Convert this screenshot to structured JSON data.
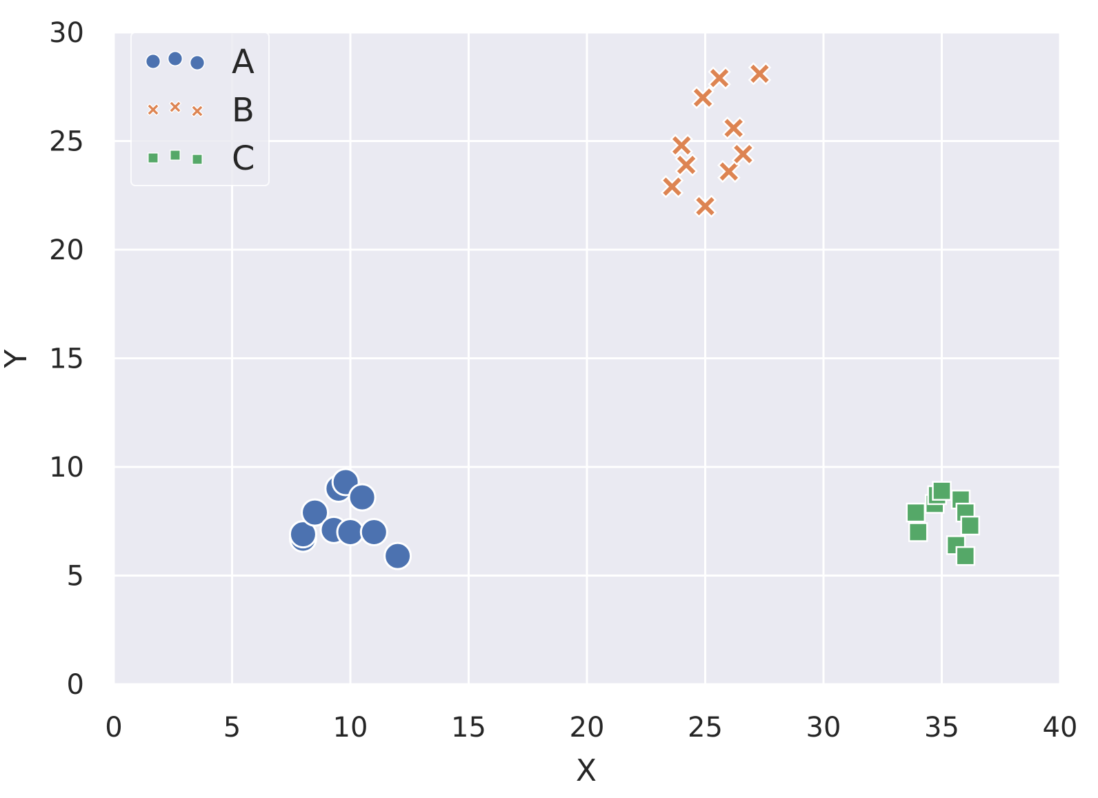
{
  "chart_data": {
    "type": "scatter",
    "title": "",
    "xlabel": "X",
    "ylabel": "Y",
    "xlim": [
      0,
      40
    ],
    "ylim": [
      0,
      30
    ],
    "xticks": [
      "0",
      "5",
      "10",
      "15",
      "20",
      "25",
      "30",
      "35",
      "40"
    ],
    "yticks": [
      "0",
      "5",
      "10",
      "15",
      "20",
      "25",
      "30"
    ],
    "grid": true,
    "legend_position": "top-left",
    "background_color": "#EAEAF2",
    "grid_color": "#FFFFFF",
    "series": [
      {
        "name": "A",
        "marker": "circle",
        "color": "#4C72B0",
        "points": [
          {
            "x": 8.0,
            "y": 6.7
          },
          {
            "x": 8.0,
            "y": 6.9
          },
          {
            "x": 8.5,
            "y": 7.9
          },
          {
            "x": 9.3,
            "y": 7.1
          },
          {
            "x": 9.5,
            "y": 9.0
          },
          {
            "x": 9.8,
            "y": 9.3
          },
          {
            "x": 10.0,
            "y": 7.0
          },
          {
            "x": 10.5,
            "y": 8.6
          },
          {
            "x": 11.0,
            "y": 7.0
          },
          {
            "x": 12.0,
            "y": 5.9
          }
        ]
      },
      {
        "name": "B",
        "marker": "x",
        "color": "#DD8452",
        "points": [
          {
            "x": 23.6,
            "y": 22.9
          },
          {
            "x": 24.0,
            "y": 24.8
          },
          {
            "x": 24.2,
            "y": 23.9
          },
          {
            "x": 24.9,
            "y": 27.0
          },
          {
            "x": 25.0,
            "y": 22.0
          },
          {
            "x": 25.6,
            "y": 27.9
          },
          {
            "x": 26.0,
            "y": 23.6
          },
          {
            "x": 26.2,
            "y": 25.6
          },
          {
            "x": 26.6,
            "y": 24.4
          },
          {
            "x": 27.3,
            "y": 28.1
          }
        ]
      },
      {
        "name": "C",
        "marker": "square",
        "color": "#55A868",
        "points": [
          {
            "x": 33.9,
            "y": 7.9
          },
          {
            "x": 34.0,
            "y": 7.0
          },
          {
            "x": 34.7,
            "y": 8.3
          },
          {
            "x": 34.8,
            "y": 8.7
          },
          {
            "x": 35.0,
            "y": 8.9
          },
          {
            "x": 35.6,
            "y": 6.4
          },
          {
            "x": 35.8,
            "y": 8.5
          },
          {
            "x": 36.0,
            "y": 7.9
          },
          {
            "x": 36.0,
            "y": 5.9
          },
          {
            "x": 36.2,
            "y": 7.3
          }
        ]
      }
    ]
  }
}
